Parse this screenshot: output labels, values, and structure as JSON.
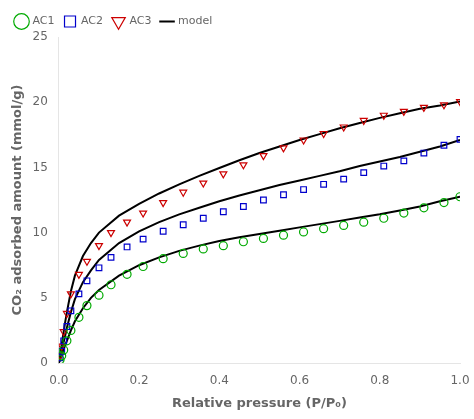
{
  "chart_data": {
    "type": "scatter",
    "xlabel": "Relative pressure (P/P₀)",
    "ylabel": "CO₂ adsorbed amount (mmol/g)",
    "xlim": [
      0,
      1.0
    ],
    "ylim": [
      0,
      25
    ],
    "xticks": [
      {
        "value": 0,
        "label": "0.0"
      },
      0.2,
      0.4,
      0.6,
      0.8,
      {
        "value": 1.0,
        "label": "1.0"
      }
    ],
    "yticks": [
      0,
      5,
      10,
      15,
      20,
      25
    ],
    "grid": false,
    "legend": "upper left",
    "series": [
      {
        "name": "AC1",
        "type": "scatter",
        "color": "#00aa00",
        "marker": "circle",
        "x": [
          0.003,
          0.007,
          0.012,
          0.02,
          0.03,
          0.05,
          0.07,
          0.1,
          0.13,
          0.17,
          0.21,
          0.26,
          0.31,
          0.36,
          0.41,
          0.46,
          0.51,
          0.56,
          0.61,
          0.66,
          0.71,
          0.76,
          0.81,
          0.86,
          0.91,
          0.96,
          1.0
        ],
        "values": [
          0.25,
          0.55,
          1.0,
          1.7,
          2.5,
          3.5,
          4.4,
          5.2,
          6.0,
          6.8,
          7.4,
          8.0,
          8.4,
          8.75,
          9.0,
          9.3,
          9.55,
          9.8,
          10.05,
          10.3,
          10.55,
          10.8,
          11.1,
          11.5,
          11.9,
          12.3,
          12.75
        ]
      },
      {
        "name": "AC2",
        "type": "scatter",
        "color": "#0000cc",
        "marker": "square",
        "x": [
          0.003,
          0.007,
          0.012,
          0.02,
          0.03,
          0.05,
          0.07,
          0.1,
          0.13,
          0.17,
          0.21,
          0.26,
          0.31,
          0.36,
          0.41,
          0.46,
          0.51,
          0.56,
          0.61,
          0.66,
          0.71,
          0.76,
          0.81,
          0.86,
          0.91,
          0.96,
          1.0
        ],
        "values": [
          0.4,
          0.9,
          1.7,
          2.8,
          4.0,
          5.3,
          6.3,
          7.3,
          8.1,
          8.9,
          9.5,
          10.1,
          10.6,
          11.1,
          11.6,
          12.0,
          12.5,
          12.9,
          13.3,
          13.7,
          14.1,
          14.6,
          15.1,
          15.5,
          16.1,
          16.7,
          17.15
        ]
      },
      {
        "name": "AC3",
        "type": "scatter",
        "color": "#cc0000",
        "marker": "triangle_down",
        "x": [
          0.003,
          0.007,
          0.012,
          0.02,
          0.03,
          0.05,
          0.07,
          0.1,
          0.13,
          0.17,
          0.21,
          0.26,
          0.31,
          0.36,
          0.41,
          0.46,
          0.51,
          0.56,
          0.61,
          0.66,
          0.71,
          0.76,
          0.81,
          0.86,
          0.91,
          0.96,
          1.0
        ],
        "values": [
          0.6,
          1.3,
          2.4,
          3.8,
          5.3,
          6.8,
          7.8,
          9.0,
          10.0,
          10.8,
          11.5,
          12.3,
          13.1,
          13.8,
          14.5,
          15.2,
          15.9,
          16.5,
          17.1,
          17.6,
          18.1,
          18.6,
          19.0,
          19.3,
          19.6,
          19.8,
          20.05
        ]
      },
      {
        "name": "model",
        "type": "line",
        "color": "#000000",
        "line_style": "solid",
        "x": [
          0.0,
          0.003,
          0.006,
          0.01,
          0.015,
          0.02,
          0.03,
          0.04,
          0.06,
          0.08,
          0.1,
          0.15,
          0.2,
          0.25,
          0.3,
          0.35,
          0.4,
          0.45,
          0.5,
          0.55,
          0.6,
          0.65,
          0.7,
          0.75,
          0.8,
          0.85,
          0.9,
          0.95,
          1.0
        ],
        "values": [
          0.0,
          0.25,
          0.5,
          0.85,
          1.3,
          1.7,
          2.5,
          3.2,
          4.2,
          5.0,
          5.6,
          6.7,
          7.5,
          8.1,
          8.6,
          9.0,
          9.35,
          9.65,
          9.9,
          10.15,
          10.4,
          10.65,
          10.9,
          11.15,
          11.4,
          11.7,
          12.0,
          12.4,
          12.75
        ]
      },
      {
        "name": "model",
        "type": "line",
        "color": "#000000",
        "line_style": "solid",
        "x": [
          0.0,
          0.003,
          0.006,
          0.01,
          0.015,
          0.02,
          0.03,
          0.04,
          0.06,
          0.08,
          0.1,
          0.15,
          0.2,
          0.25,
          0.3,
          0.35,
          0.4,
          0.45,
          0.5,
          0.55,
          0.6,
          0.65,
          0.7,
          0.75,
          0.8,
          0.85,
          0.9,
          0.95,
          1.0
        ],
        "values": [
          0.0,
          0.4,
          0.8,
          1.35,
          2.0,
          2.7,
          3.9,
          4.9,
          6.2,
          7.1,
          7.9,
          9.2,
          10.1,
          10.8,
          11.4,
          11.9,
          12.4,
          12.85,
          13.25,
          13.65,
          14.0,
          14.35,
          14.7,
          15.1,
          15.45,
          15.8,
          16.2,
          16.6,
          17.1
        ]
      },
      {
        "name": "model",
        "type": "line",
        "color": "#000000",
        "line_style": "solid",
        "x": [
          0.0,
          0.003,
          0.006,
          0.01,
          0.015,
          0.02,
          0.03,
          0.04,
          0.06,
          0.08,
          0.1,
          0.15,
          0.2,
          0.25,
          0.3,
          0.35,
          0.4,
          0.45,
          0.5,
          0.55,
          0.6,
          0.65,
          0.7,
          0.75,
          0.8,
          0.85,
          0.9,
          0.95,
          1.0
        ],
        "values": [
          0.0,
          0.6,
          1.2,
          2.0,
          3.0,
          3.9,
          5.5,
          6.7,
          8.2,
          9.2,
          10.0,
          11.3,
          12.2,
          13.0,
          13.7,
          14.35,
          14.95,
          15.55,
          16.1,
          16.6,
          17.1,
          17.55,
          18.0,
          18.4,
          18.8,
          19.15,
          19.5,
          19.75,
          20.05
        ]
      }
    ]
  }
}
